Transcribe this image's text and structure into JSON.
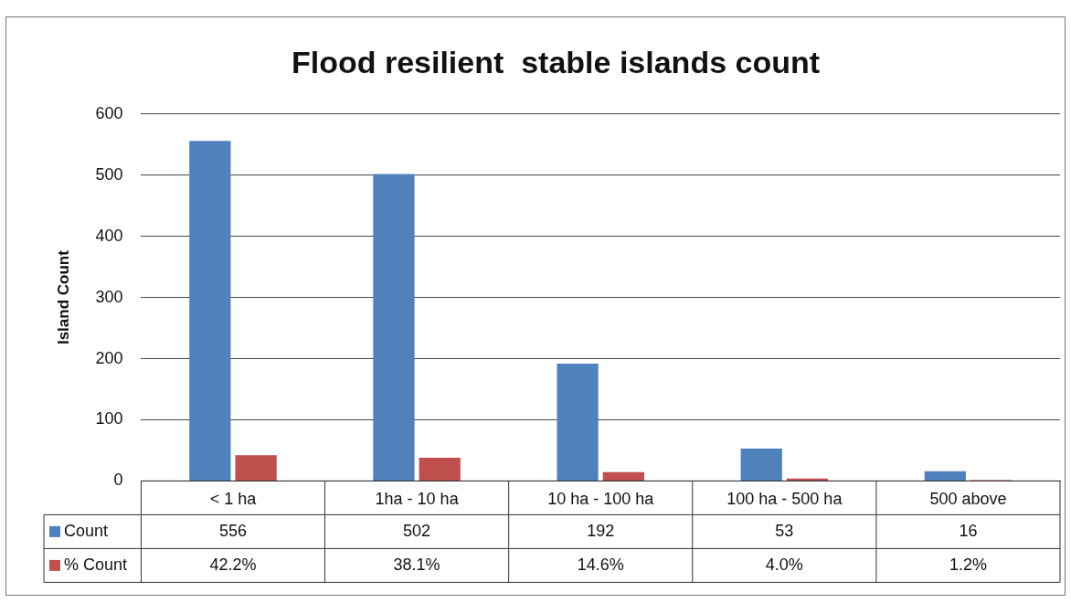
{
  "chart_data": {
    "type": "bar",
    "title": "Flood resilient  stable islands count",
    "ylabel": "Island Count",
    "categories": [
      "< 1 ha",
      "1ha - 10 ha",
      "10 ha - 100 ha",
      "100 ha - 500 ha",
      "500 above"
    ],
    "series": [
      {
        "name": "Count",
        "color": "#4f81bd",
        "values": [
          556,
          502,
          192,
          53,
          16
        ],
        "value_labels": [
          "556",
          "502",
          "192",
          "53",
          "16"
        ]
      },
      {
        "name": "% Count",
        "color": "#c0504d",
        "values": [
          42.2,
          38.1,
          14.6,
          4.0,
          1.2
        ],
        "value_labels": [
          "42.2%",
          "38.1%",
          "14.6%",
          "4.0%",
          "1.2%"
        ]
      }
    ],
    "ylim": [
      0,
      600
    ],
    "yticks": [
      0,
      100,
      200,
      300,
      400,
      500,
      600
    ],
    "grid": "y",
    "legend": "bottom"
  }
}
